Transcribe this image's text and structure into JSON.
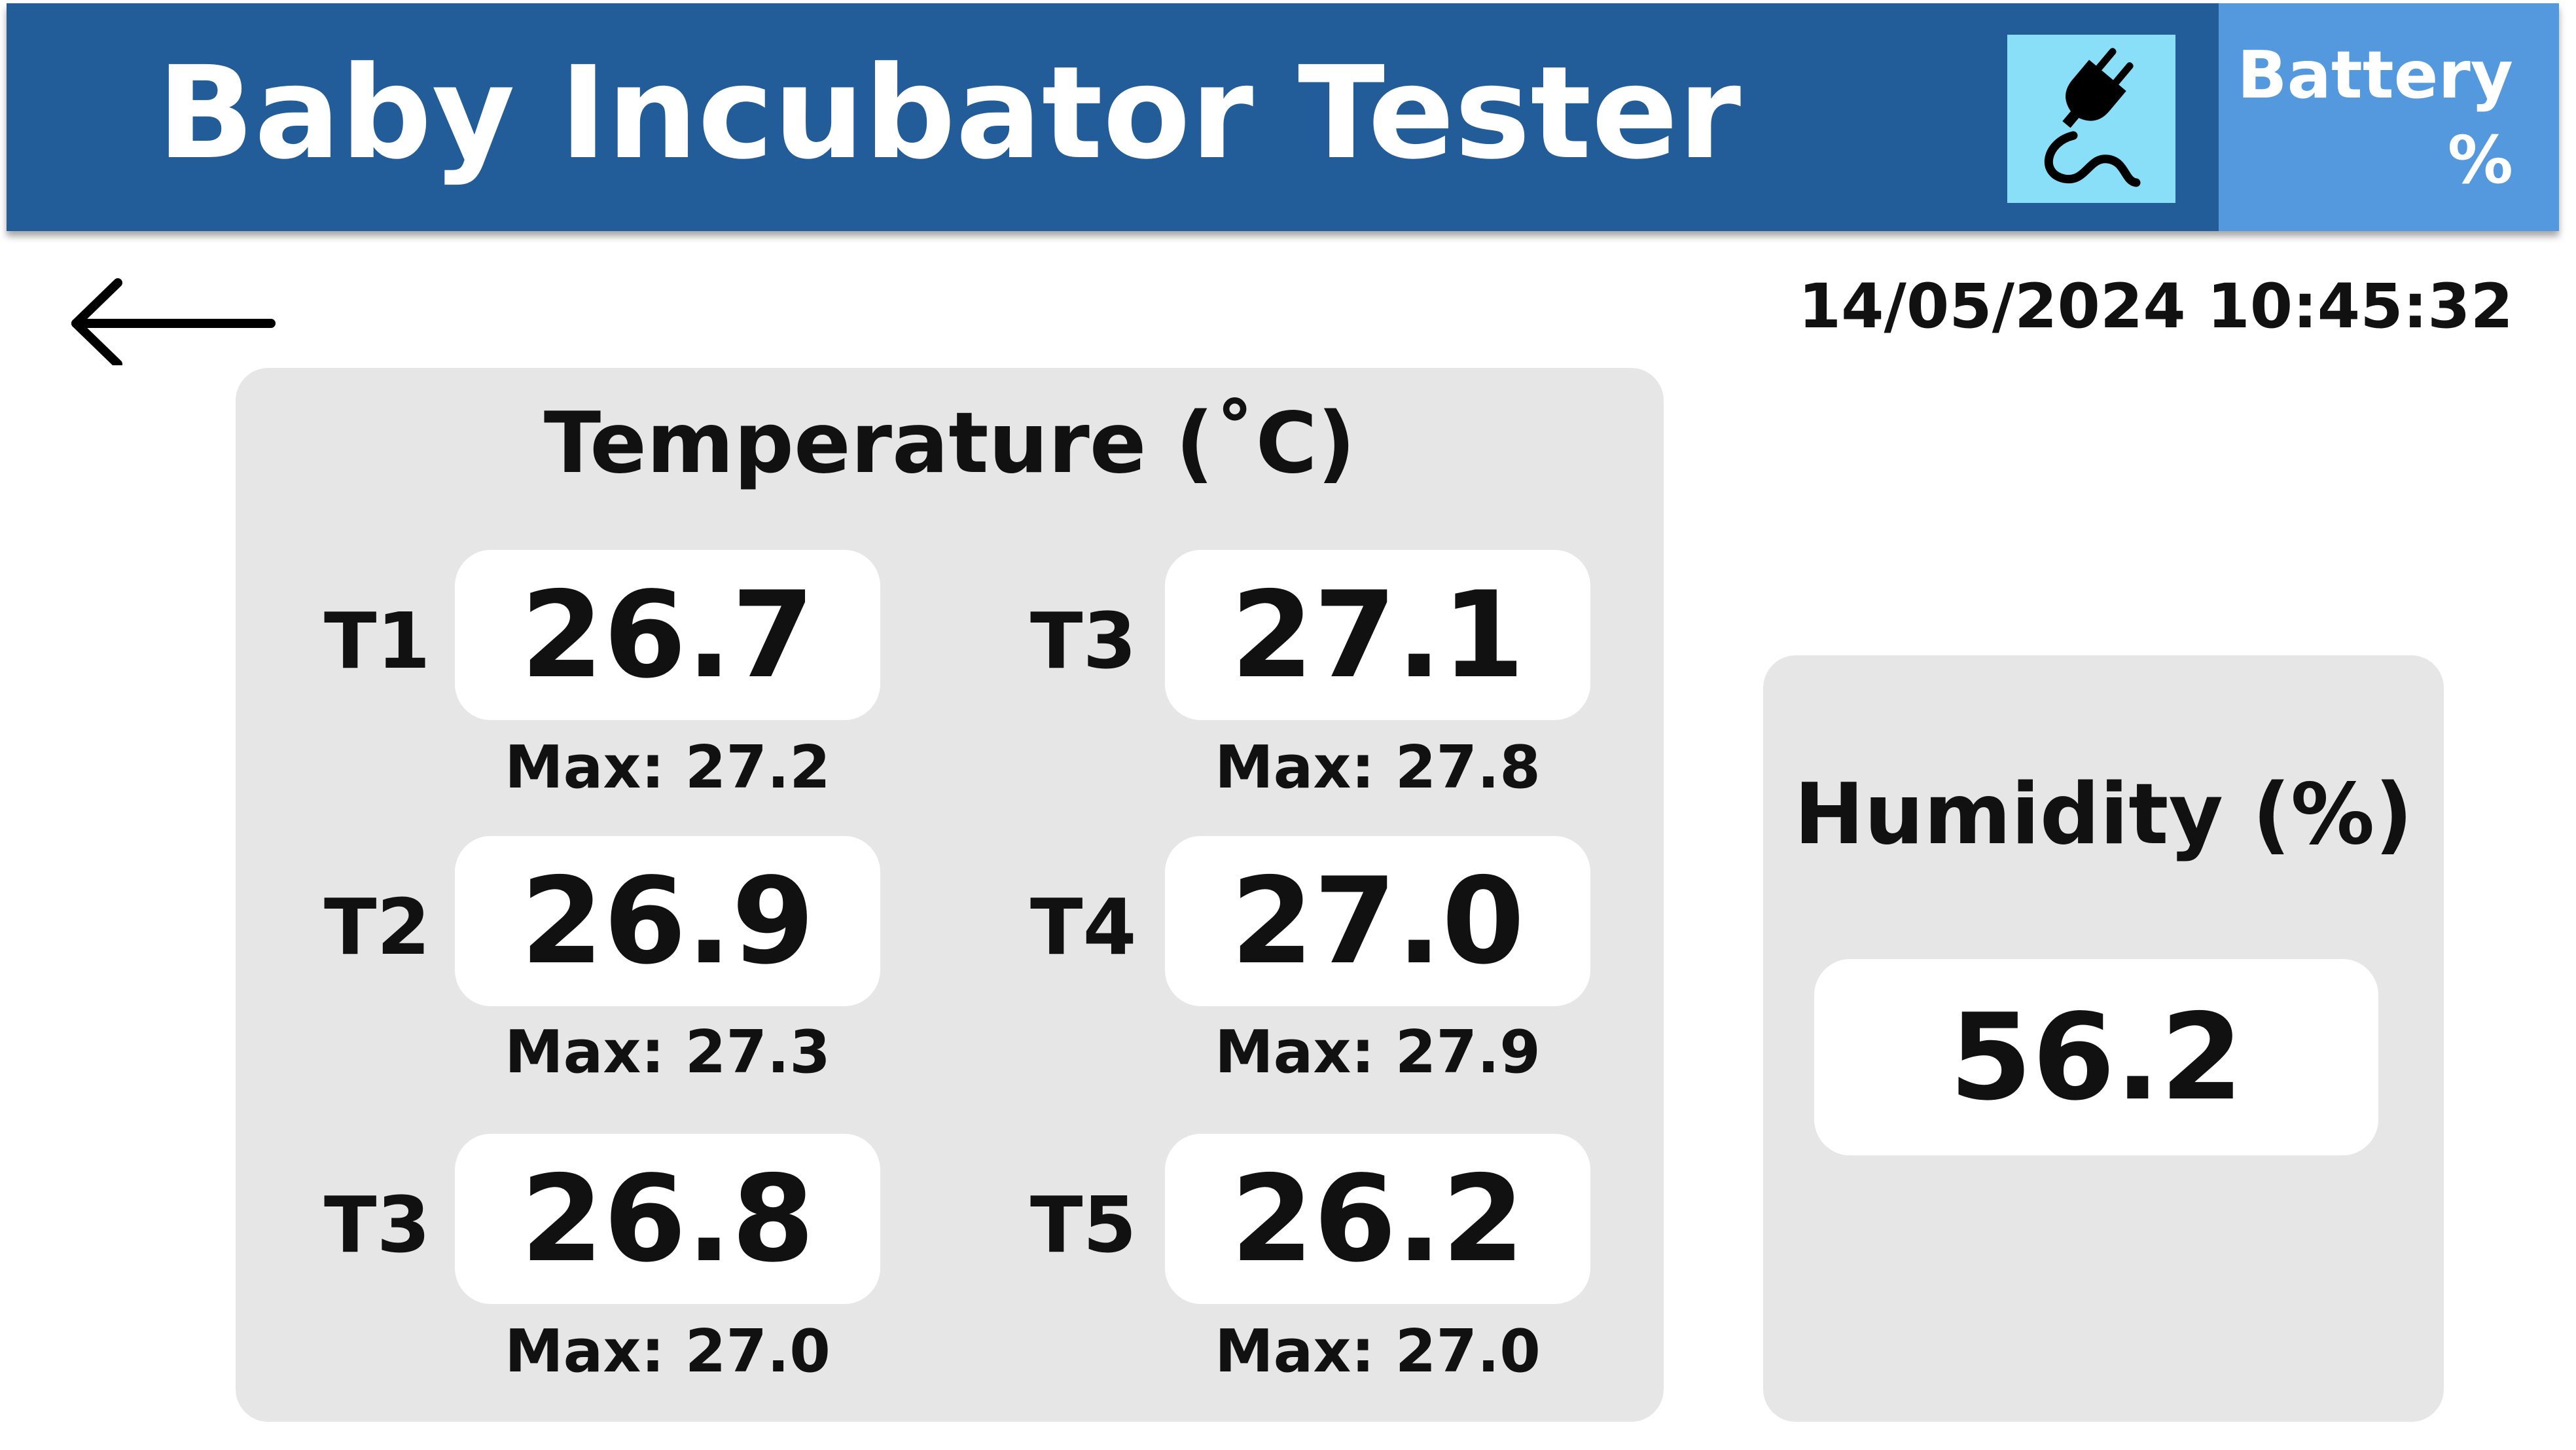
{
  "header": {
    "title": "Baby Incubator Tester",
    "power_icon": "plug-icon",
    "battery_label": "Battery",
    "battery_unit": "%"
  },
  "nav": {
    "back_icon": "back-arrow-icon"
  },
  "datetime": "14/05/2024 10:45:32",
  "temperature": {
    "title": "Temperature (˚C)",
    "sensors": [
      {
        "label": "T1",
        "value": "26.7",
        "max": "Max: 27.2"
      },
      {
        "label": "T2",
        "value": "26.9",
        "max": "Max: 27.3"
      },
      {
        "label": "T3",
        "value": "26.8",
        "max": "Max: 27.0"
      },
      {
        "label": "T3",
        "value": "27.1",
        "max": "Max: 27.8"
      },
      {
        "label": "T4",
        "value": "27.0",
        "max": "Max: 27.9"
      },
      {
        "label": "T5",
        "value": "26.2",
        "max": "Max: 27.0"
      }
    ]
  },
  "humidity": {
    "title": "Humidity (%)",
    "value": "56.2"
  },
  "colors": {
    "header": "#225c99",
    "battery_panel": "#5499dd",
    "power_box": "#8adff8",
    "panel_bg": "#e6e6e6"
  }
}
